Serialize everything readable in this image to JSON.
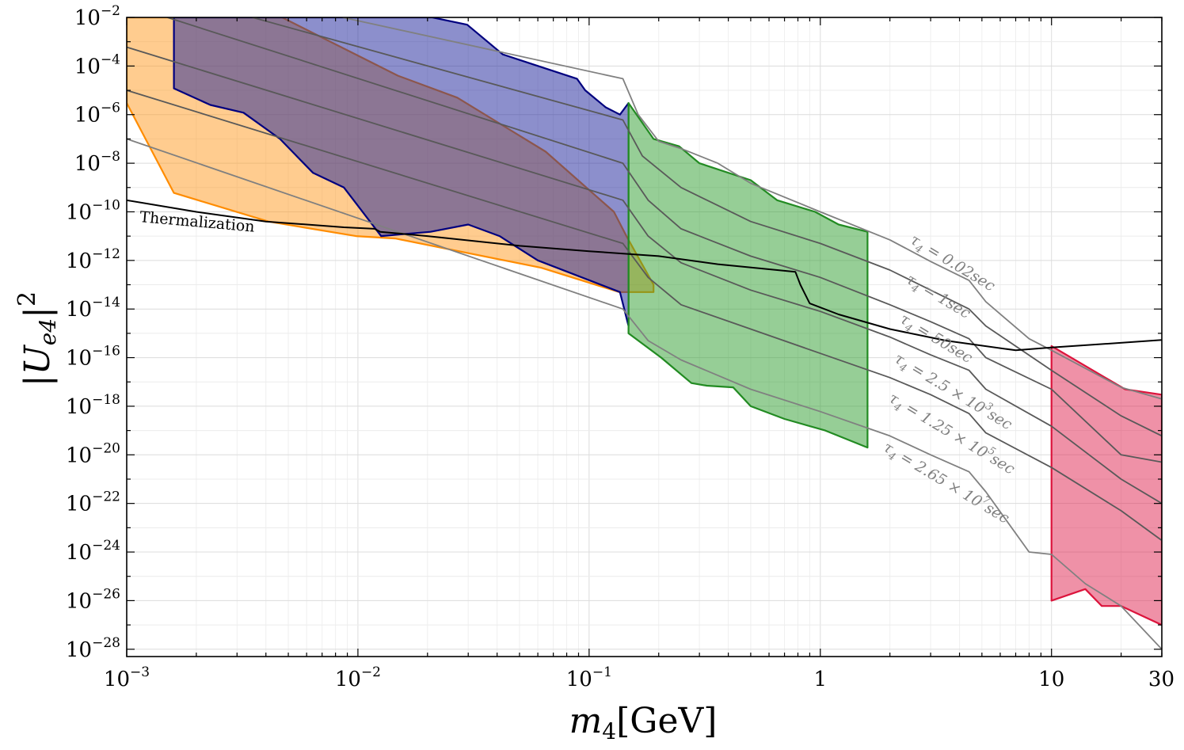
{
  "chart_data": {
    "type": "area",
    "xlabel": "m_4[GeV]",
    "ylabel": "|U_e4|^2",
    "xscale": "log",
    "yscale": "log",
    "xlim": [
      0.001,
      30
    ],
    "ylim": [
      5e-29,
      0.01
    ],
    "grid": true,
    "x_ticks": [
      {
        "value": 0.001,
        "base": "10",
        "exp": "−3"
      },
      {
        "value": 0.01,
        "base": "10",
        "exp": "−2"
      },
      {
        "value": 0.1,
        "base": "10",
        "exp": "−1"
      },
      {
        "value": 1,
        "base": "1",
        "exp": ""
      },
      {
        "value": 10,
        "base": "10",
        "exp": ""
      },
      {
        "value": 30,
        "base": "30",
        "exp": ""
      }
    ],
    "y_ticks": [
      {
        "value": 0.01,
        "base": "10",
        "exp": "−2"
      },
      {
        "value": 0.0001,
        "base": "10",
        "exp": "−4"
      },
      {
        "value": 1e-06,
        "base": "10",
        "exp": "−6"
      },
      {
        "value": 1e-08,
        "base": "10",
        "exp": "−8"
      },
      {
        "value": 1e-10,
        "base": "10",
        "exp": "−10"
      },
      {
        "value": 1e-12,
        "base": "10",
        "exp": "−12"
      },
      {
        "value": 1e-14,
        "base": "10",
        "exp": "−14"
      },
      {
        "value": 1e-16,
        "base": "10",
        "exp": "−16"
      },
      {
        "value": 1e-18,
        "base": "10",
        "exp": "−18"
      },
      {
        "value": 1e-20,
        "base": "10",
        "exp": "−20"
      },
      {
        "value": 1e-22,
        "base": "10",
        "exp": "−22"
      },
      {
        "value": 1e-24,
        "base": "10",
        "exp": "−24"
      },
      {
        "value": 1e-26,
        "base": "10",
        "exp": "−26"
      },
      {
        "value": 1e-28,
        "base": "10",
        "exp": "−28"
      }
    ],
    "regions": [
      {
        "color": "#ff9a1f",
        "fill_opacity": 0.5,
        "stroke": "#ff8c00",
        "points": [
          [
            0.001,
            3e-06
          ],
          [
            0.001,
            0.01
          ],
          [
            0.0047,
            0.01
          ],
          [
            0.0149,
            4e-05
          ],
          [
            0.0269,
            5e-06
          ],
          [
            0.0649,
            3e-08
          ],
          [
            0.128,
            1e-10
          ],
          [
            0.145,
            1e-11
          ],
          [
            0.19,
            1e-13
          ],
          [
            0.19,
            5e-14
          ],
          [
            0.135,
            5e-14
          ],
          [
            0.062,
            5e-13
          ],
          [
            0.0145,
            8e-12
          ],
          [
            0.0098,
            1e-11
          ],
          [
            0.0041,
            4e-11
          ],
          [
            0.0016,
            6e-10
          ]
        ]
      },
      {
        "color": "#1a1f9a",
        "fill_opacity": 0.5,
        "stroke": "#00007f",
        "points": [
          [
            0.0016,
            0.01
          ],
          [
            0.021,
            0.01
          ],
          [
            0.0297,
            0.005
          ],
          [
            0.0423,
            0.0003
          ],
          [
            0.0603,
            0.0001
          ],
          [
            0.0886,
            3e-05
          ],
          [
            0.0962,
            1e-05
          ],
          [
            0.118,
            2e-06
          ],
          [
            0.136,
            1e-06
          ],
          [
            0.148,
            3e-06
          ],
          [
            0.148,
            2e-15
          ],
          [
            0.136,
            5e-14
          ],
          [
            0.06,
            1e-12
          ],
          [
            0.041,
            1e-11
          ],
          [
            0.03,
            3e-11
          ],
          [
            0.0206,
            1.5e-11
          ],
          [
            0.0126,
            1e-11
          ],
          [
            0.0087,
            1e-09
          ],
          [
            0.0064,
            4e-09
          ],
          [
            0.0046,
            1e-07
          ],
          [
            0.0032,
            1.2e-06
          ],
          [
            0.0023,
            2.5e-06
          ],
          [
            0.0016,
            1.2e-05
          ]
        ]
      },
      {
        "color": "#2e9e2e",
        "fill_opacity": 0.5,
        "stroke": "#228b22",
        "points": [
          [
            0.148,
            3e-06
          ],
          [
            0.19,
            1e-07
          ],
          [
            0.245,
            5e-08
          ],
          [
            0.3,
            1e-08
          ],
          [
            0.5,
            2e-09
          ],
          [
            0.65,
            3e-10
          ],
          [
            0.95,
            1e-10
          ],
          [
            1.2,
            3e-11
          ],
          [
            1.6,
            1.5e-11
          ],
          [
            1.6,
            2e-20
          ],
          [
            1.05,
            1e-19
          ],
          [
            0.7,
            3e-19
          ],
          [
            0.5,
            1e-18
          ],
          [
            0.42,
            6e-18
          ],
          [
            0.323,
            7e-18
          ],
          [
            0.277,
            9e-18
          ],
          [
            0.205,
            1e-16
          ],
          [
            0.148,
            1e-15
          ]
        ]
      },
      {
        "color": "#e0244f",
        "fill_opacity": 0.5,
        "stroke": "#dc143c",
        "points": [
          [
            10,
            3e-16
          ],
          [
            20.8,
            5e-18
          ],
          [
            30,
            3e-18
          ],
          [
            30,
            1e-27
          ],
          [
            20,
            6e-27
          ],
          [
            16.5,
            6e-27
          ],
          [
            14,
            3e-26
          ],
          [
            10,
            1e-26
          ]
        ]
      }
    ],
    "series": [
      {
        "name": "τ_4 = 0.02 sec",
        "color": "#808080",
        "points": [
          [
            0.0086,
            0.01
          ],
          [
            0.14,
            3e-05
          ],
          [
            0.163,
            1e-06
          ],
          [
            0.2,
            8e-08
          ],
          [
            0.25,
            4e-08
          ],
          [
            0.36,
            1e-08
          ],
          [
            0.5,
            1.5e-09
          ],
          [
            1,
            1e-10
          ],
          [
            2,
            7e-12
          ],
          [
            3,
            9e-13
          ],
          [
            4.4,
            1.5e-13
          ],
          [
            5.2,
            2e-14
          ],
          [
            8,
            6e-16
          ],
          [
            10,
            2e-16
          ],
          [
            20,
            6e-18
          ],
          [
            30,
            2e-18
          ]
        ]
      },
      {
        "name": "τ_4 = 1 sec",
        "color": "#595959",
        "points": [
          [
            0.0035,
            0.01
          ],
          [
            0.14,
            6e-07
          ],
          [
            0.17,
            2e-08
          ],
          [
            0.25,
            1e-09
          ],
          [
            0.5,
            4e-11
          ],
          [
            1,
            5e-12
          ],
          [
            2,
            4e-13
          ],
          [
            3,
            6e-14
          ],
          [
            4.4,
            1e-14
          ],
          [
            5.2,
            2e-15
          ],
          [
            10,
            3e-17
          ],
          [
            20,
            4e-19
          ],
          [
            30,
            6e-20
          ]
        ]
      },
      {
        "name": "τ_4 = 50 sec",
        "color": "#595959",
        "points": [
          [
            0.0015,
            0.01
          ],
          [
            0.14,
            1e-08
          ],
          [
            0.18,
            3e-10
          ],
          [
            0.25,
            2e-11
          ],
          [
            0.5,
            1.5e-12
          ],
          [
            1,
            2e-13
          ],
          [
            2,
            1.5e-14
          ],
          [
            3,
            3e-15
          ],
          [
            4.4,
            6e-16
          ],
          [
            5.2,
            1e-16
          ],
          [
            10,
            5e-18
          ],
          [
            20,
            1e-20
          ],
          [
            30,
            5e-21
          ]
        ]
      },
      {
        "name": "τ_4 = 2.5×10^3 sec",
        "color": "#595959",
        "points": [
          [
            0.001,
            0.0006
          ],
          [
            0.14,
            3e-10
          ],
          [
            0.18,
            1e-11
          ],
          [
            0.25,
            8e-13
          ],
          [
            0.5,
            6e-14
          ],
          [
            1,
            8e-15
          ],
          [
            2,
            7e-16
          ],
          [
            3,
            1.3e-16
          ],
          [
            4.4,
            3e-17
          ],
          [
            5.2,
            5e-18
          ],
          [
            10,
            1.5e-19
          ],
          [
            20,
            1e-21
          ],
          [
            30,
            1e-22
          ]
        ]
      },
      {
        "name": "τ_4 = 1.25×10^5 sec",
        "color": "#595959",
        "points": [
          [
            0.001,
            1e-05
          ],
          [
            0.14,
            5e-12
          ],
          [
            0.18,
            2e-13
          ],
          [
            0.25,
            1.5e-14
          ],
          [
            0.5,
            1.5e-15
          ],
          [
            1,
            1.5e-16
          ],
          [
            2,
            1.5e-17
          ],
          [
            3,
            3e-18
          ],
          [
            4.4,
            5e-19
          ],
          [
            5.2,
            8e-20
          ],
          [
            10,
            3e-21
          ],
          [
            20,
            5e-23
          ],
          [
            30,
            3e-24
          ]
        ]
      },
      {
        "name": "τ_4 = 2.65×10^7 sec",
        "color": "#808080",
        "points": [
          [
            0.001,
            1e-07
          ],
          [
            0.14,
            1e-14
          ],
          [
            0.18,
            5e-16
          ],
          [
            0.25,
            8e-17
          ],
          [
            0.5,
            5e-18
          ],
          [
            1,
            6e-19
          ],
          [
            2,
            6e-20
          ],
          [
            3,
            1e-20
          ],
          [
            4.4,
            2e-21
          ],
          [
            5.2,
            3e-22
          ],
          [
            8,
            1e-24
          ],
          [
            10,
            8e-25
          ],
          [
            14,
            5e-26
          ],
          [
            20,
            6e-27
          ],
          [
            30,
            1e-28
          ]
        ]
      },
      {
        "name": "Thermalization",
        "color": "#000000",
        "points": [
          [
            0.001,
            3e-10
          ],
          [
            0.002,
            1e-10
          ],
          [
            0.004,
            4e-11
          ],
          [
            0.0087,
            2.3e-11
          ],
          [
            0.0118,
            2e-11
          ],
          [
            0.0125,
            1.5e-11
          ],
          [
            0.02,
            1e-11
          ],
          [
            0.05,
            4e-12
          ],
          [
            0.1,
            2.4e-12
          ],
          [
            0.2,
            1.5e-12
          ],
          [
            0.36,
            7e-13
          ],
          [
            0.78,
            3.4e-13
          ],
          [
            0.82,
            1e-13
          ],
          [
            0.9,
            1.7e-14
          ],
          [
            1.2,
            6e-15
          ],
          [
            2,
            1.5e-15
          ],
          [
            3.5,
            5e-16
          ],
          [
            7,
            2e-16
          ],
          [
            10,
            2.6e-16
          ],
          [
            30,
            5.3e-16
          ]
        ]
      }
    ],
    "annotations": [
      {
        "id": "therm",
        "text": "Thermalization"
      },
      {
        "id": "t1",
        "sym": "τ",
        "sub": "4",
        "eq": " = 0.02sec"
      },
      {
        "id": "t2",
        "sym": "τ",
        "sub": "4",
        "eq": " = 1sec"
      },
      {
        "id": "t3",
        "sym": "τ",
        "sub": "4",
        "eq": " = 50sec"
      },
      {
        "id": "t4",
        "sym": "τ",
        "sub": "4",
        "eq": " = 2.5 × 10",
        "sup": "3",
        "unit": "sec"
      },
      {
        "id": "t5",
        "sym": "τ",
        "sub": "4",
        "eq": " = 1.25 × 10",
        "sup": "5",
        "unit": "sec"
      },
      {
        "id": "t6",
        "sym": "τ",
        "sub": "4",
        "eq": " = 2.65 × 10",
        "sup": "7",
        "unit": "sec"
      }
    ]
  }
}
